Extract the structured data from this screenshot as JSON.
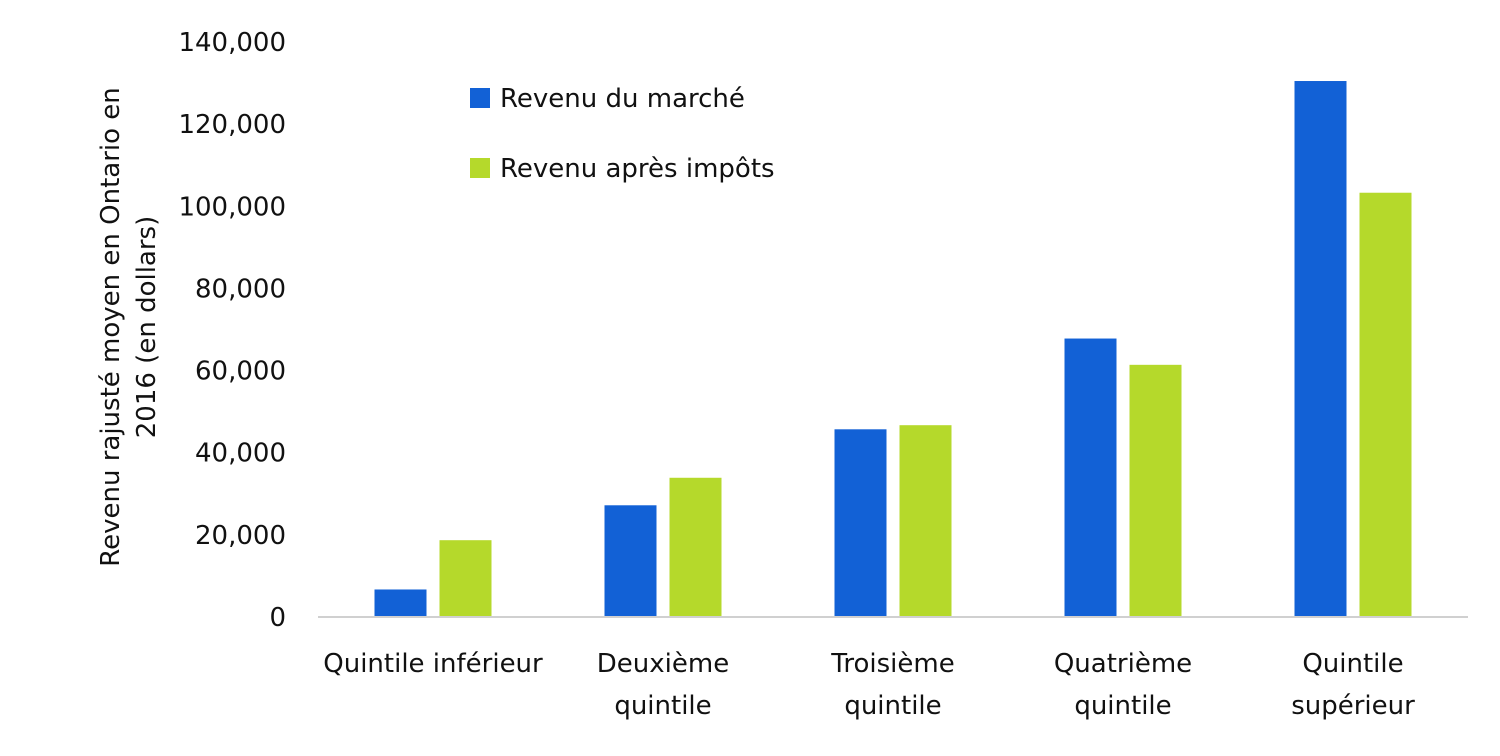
{
  "chart_data": {
    "type": "bar",
    "title": "",
    "ylabel_lines": [
      "Revenu rajusté moyen en Ontario en",
      "2016 (en dollars)"
    ],
    "xlabel": "",
    "ylim": [
      0,
      140000
    ],
    "yticks": [
      0,
      20000,
      40000,
      60000,
      80000,
      100000,
      120000,
      140000
    ],
    "ytick_labels": [
      "0",
      "20,000",
      "40,000",
      "60,000",
      "80,000",
      "100,000",
      "120,000",
      "140,000"
    ],
    "grid": false,
    "legend_position": "top-center",
    "categories": [
      [
        "Quintile inférieur"
      ],
      [
        "Deuxième",
        "quintile"
      ],
      [
        "Troisième",
        "quintile"
      ],
      [
        "Quatrième",
        "quintile"
      ],
      [
        "Quintile",
        "supérieur"
      ]
    ],
    "series": [
      {
        "name": "Revenu du marché",
        "color": "#1261d6",
        "values": [
          6700,
          27200,
          45700,
          67800,
          130500
        ]
      },
      {
        "name": "Revenu après impôts",
        "color": "#b5d92b",
        "values": [
          18700,
          33900,
          46700,
          61400,
          103300
        ]
      }
    ]
  }
}
